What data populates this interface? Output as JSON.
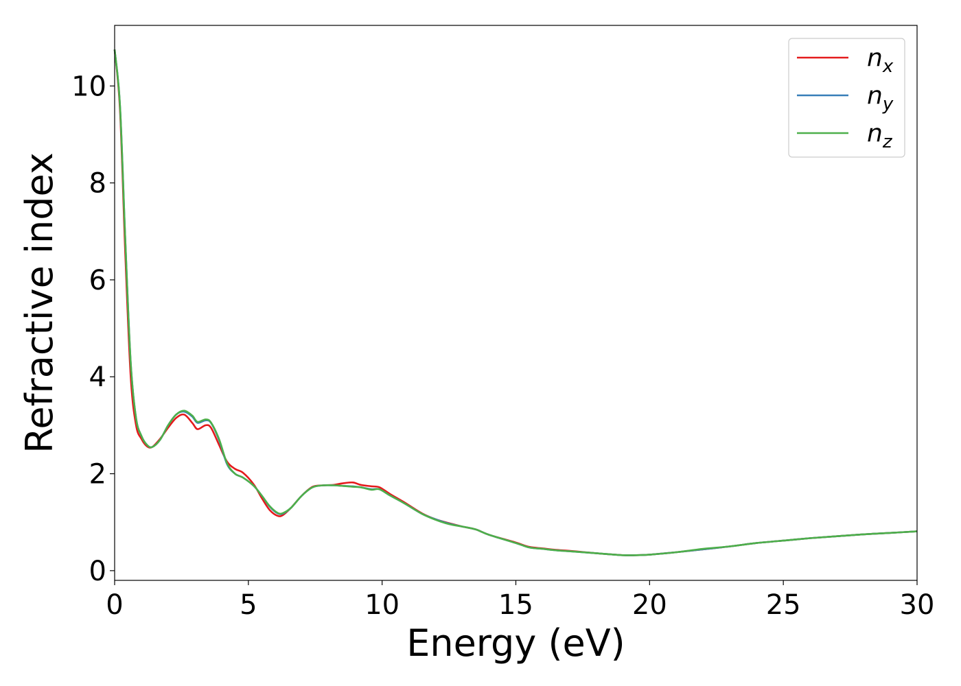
{
  "chart_data": {
    "type": "line",
    "xlabel": "Energy (eV)",
    "ylabel": "Refractive index",
    "xlim": [
      0,
      30
    ],
    "ylim": [
      -0.2,
      11.25
    ],
    "xticks": [
      0,
      5,
      10,
      15,
      20,
      25,
      30
    ],
    "yticks": [
      0,
      2,
      4,
      6,
      8,
      10
    ],
    "grid": false,
    "legend_position": "top-right",
    "series": [
      {
        "name": "n",
        "subscript": "x",
        "color": "#e41a1c",
        "x": [
          0,
          0.2,
          0.4,
          0.6,
          0.8,
          1.0,
          1.2,
          1.4,
          1.7,
          2.0,
          2.3,
          2.6,
          2.9,
          3.1,
          3.4,
          3.6,
          3.9,
          4.2,
          4.5,
          4.8,
          5.2,
          5.5,
          5.8,
          6.1,
          6.3,
          6.6,
          7.0,
          7.4,
          7.8,
          8.2,
          8.5,
          8.9,
          9.2,
          9.6,
          9.9,
          10.3,
          10.8,
          11.5,
          12.0,
          12.5,
          13.0,
          13.5,
          14.0,
          15.0,
          15.5,
          16.0,
          16.5,
          17.0,
          18.0,
          19.0,
          19.5,
          20.0,
          21.0,
          22.0,
          23.0,
          24.0,
          25.0,
          26.0,
          27.0,
          28.0,
          29.0,
          30.0
        ],
        "values": [
          10.75,
          9.5,
          6.5,
          4.0,
          3.0,
          2.72,
          2.57,
          2.55,
          2.72,
          2.95,
          3.15,
          3.22,
          3.05,
          2.92,
          3.0,
          2.95,
          2.6,
          2.25,
          2.1,
          2.02,
          1.78,
          1.5,
          1.25,
          1.13,
          1.15,
          1.3,
          1.55,
          1.73,
          1.76,
          1.77,
          1.8,
          1.82,
          1.77,
          1.74,
          1.72,
          1.58,
          1.42,
          1.18,
          1.06,
          0.98,
          0.91,
          0.85,
          0.74,
          0.58,
          0.49,
          0.46,
          0.43,
          0.41,
          0.36,
          0.32,
          0.32,
          0.33,
          0.38,
          0.44,
          0.5,
          0.57,
          0.62,
          0.67,
          0.71,
          0.75,
          0.78,
          0.81
        ]
      },
      {
        "name": "n",
        "subscript": "y",
        "color": "#377eb8",
        "x": [
          0,
          0.2,
          0.4,
          0.6,
          0.8,
          1.0,
          1.2,
          1.4,
          1.7,
          2.0,
          2.3,
          2.6,
          2.9,
          3.1,
          3.4,
          3.6,
          3.9,
          4.2,
          4.5,
          4.8,
          5.2,
          5.5,
          5.8,
          6.1,
          6.3,
          6.6,
          7.0,
          7.4,
          7.8,
          8.2,
          8.5,
          8.9,
          9.2,
          9.6,
          9.9,
          10.3,
          10.8,
          11.5,
          12.0,
          12.5,
          13.0,
          13.5,
          14.0,
          15.0,
          15.5,
          16.0,
          16.5,
          17.0,
          18.0,
          19.0,
          19.5,
          20.0,
          21.0,
          22.0,
          23.0,
          24.0,
          25.0,
          26.0,
          27.0,
          28.0,
          29.0,
          30.0
        ],
        "values": [
          10.75,
          9.6,
          6.8,
          4.3,
          3.15,
          2.78,
          2.6,
          2.55,
          2.7,
          3.0,
          3.22,
          3.28,
          3.18,
          3.05,
          3.1,
          3.05,
          2.7,
          2.2,
          2.0,
          1.92,
          1.75,
          1.55,
          1.32,
          1.18,
          1.18,
          1.3,
          1.55,
          1.72,
          1.76,
          1.76,
          1.75,
          1.74,
          1.72,
          1.68,
          1.68,
          1.55,
          1.4,
          1.17,
          1.06,
          0.97,
          0.91,
          0.85,
          0.74,
          0.57,
          0.48,
          0.45,
          0.42,
          0.4,
          0.36,
          0.32,
          0.32,
          0.33,
          0.38,
          0.44,
          0.5,
          0.57,
          0.62,
          0.67,
          0.71,
          0.75,
          0.78,
          0.81
        ]
      },
      {
        "name": "n",
        "subscript": "z",
        "color": "#4daf4a",
        "x": [
          0,
          0.2,
          0.4,
          0.6,
          0.8,
          1.0,
          1.2,
          1.4,
          1.7,
          2.0,
          2.3,
          2.6,
          2.9,
          3.1,
          3.4,
          3.6,
          3.9,
          4.2,
          4.5,
          4.8,
          5.2,
          5.5,
          5.8,
          6.1,
          6.3,
          6.6,
          7.0,
          7.4,
          7.8,
          8.2,
          8.5,
          8.9,
          9.2,
          9.6,
          9.9,
          10.3,
          10.8,
          11.5,
          12.0,
          12.5,
          13.0,
          13.5,
          14.0,
          15.0,
          15.5,
          16.0,
          16.5,
          17.0,
          18.0,
          19.0,
          19.5,
          20.0,
          21.0,
          22.0,
          23.0,
          24.0,
          25.0,
          26.0,
          27.0,
          28.0,
          29.0,
          30.0
        ],
        "values": [
          10.75,
          9.6,
          6.8,
          4.3,
          3.15,
          2.78,
          2.6,
          2.55,
          2.7,
          3.0,
          3.22,
          3.3,
          3.2,
          3.07,
          3.12,
          3.06,
          2.72,
          2.22,
          2.0,
          1.92,
          1.75,
          1.55,
          1.33,
          1.19,
          1.19,
          1.3,
          1.55,
          1.72,
          1.76,
          1.76,
          1.75,
          1.73,
          1.72,
          1.67,
          1.68,
          1.55,
          1.4,
          1.17,
          1.05,
          0.96,
          0.91,
          0.85,
          0.74,
          0.57,
          0.48,
          0.45,
          0.42,
          0.4,
          0.36,
          0.32,
          0.32,
          0.33,
          0.38,
          0.45,
          0.5,
          0.57,
          0.62,
          0.67,
          0.71,
          0.75,
          0.78,
          0.81
        ]
      }
    ]
  }
}
